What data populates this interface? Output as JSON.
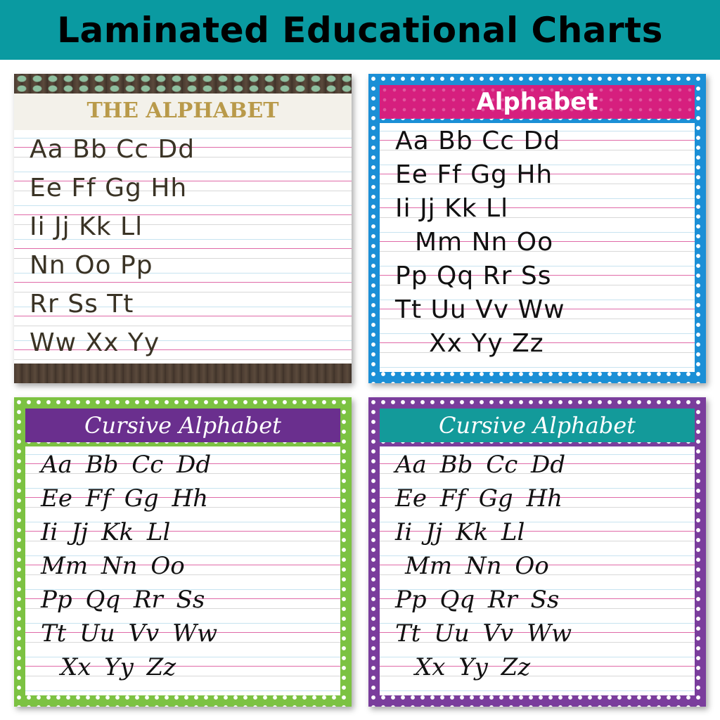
{
  "banner": {
    "title": "Laminated Educational Charts",
    "color": "#0a9aa1"
  },
  "posters": [
    {
      "title": "THE ALPHABET",
      "theme": "eucalyptus wood",
      "rows": [
        "Aa Bb Cc Dd",
        "Ee Ff Gg Hh",
        "Ii Jj Kk Ll",
        "Nn Oo Pp",
        "Rr Ss Tt",
        "Ww Xx Yy"
      ]
    },
    {
      "title": "Alphabet",
      "border_color": "#1b8fd6",
      "header_color": "#d61f7e",
      "rows": [
        "Aa Bb Cc Dd",
        "Ee Ff Gg Hh",
        "Ii Jj Kk Ll",
        "Mm Nn Oo",
        "Pp Qq Rr Ss",
        "Tt Uu Vv Ww",
        "Xx Yy Zz"
      ]
    },
    {
      "title": "Cursive Alphabet",
      "border_color": "#7cc242",
      "header_color": "#6a2f8e",
      "rows": [
        "Aa Bb Cc Dd",
        "Ee Ff Gg Hh",
        "Ii Jj Kk Ll",
        "Mm Nn Oo",
        "Pp Qq Rr Ss",
        "Tt Uu Vv Ww",
        "Xx Yy Zz"
      ]
    },
    {
      "title": "Cursive Alphabet",
      "border_color": "#7a3d9c",
      "header_color": "#139a9a",
      "rows": [
        "Aa Bb Cc Dd",
        "Ee Ff Gg Hh",
        "Ii Jj Kk Ll",
        "Mm Nn Oo",
        "Pp Qq Rr Ss",
        "Tt Uu Vv Ww",
        "Xx Yy Zz"
      ]
    }
  ]
}
